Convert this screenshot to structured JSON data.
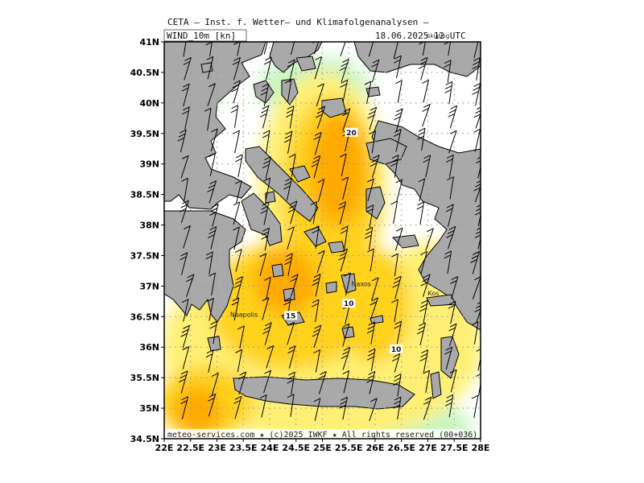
{
  "header": {
    "title": "CETA — Inst. f. Wetter— und Klimafolgenanalysen —",
    "variable": "WIND_10m [kn]",
    "datetime": "18.06.2025 12 UTC",
    "overlay_label": "Skiatlog"
  },
  "axes": {
    "lat_labels": [
      "41N",
      "40.5N",
      "40N",
      "39.5N",
      "39N",
      "38.5N",
      "38N",
      "37.5N",
      "37N",
      "36.5N",
      "36N",
      "35.5N",
      "35N",
      "34.5N"
    ],
    "lon_labels": [
      "22E",
      "22.5E",
      "23E",
      "23.5E",
      "24E",
      "24.5E",
      "25E",
      "25.5E",
      "26E",
      "26.5E",
      "27E",
      "27.5E",
      "28E"
    ]
  },
  "places": [
    {
      "name": "Naxos",
      "lon": 25.55,
      "lat": 37.0
    },
    {
      "name": "Kos",
      "lon": 27.0,
      "lat": 36.85
    },
    {
      "name": "Neapolis",
      "lon": 23.25,
      "lat": 36.5
    }
  ],
  "contour_labels": [
    {
      "text": "20",
      "lon": 25.55,
      "lat": 39.5
    },
    {
      "text": "15",
      "lon": 24.4,
      "lat": 36.5
    },
    {
      "text": "10",
      "lon": 25.5,
      "lat": 36.7
    },
    {
      "text": "10",
      "lon": 26.4,
      "lat": 35.95
    }
  ],
  "colors": {
    "land": "#a9a9a9",
    "calm": "#c8f5c3",
    "light": "#fff075",
    "moderate": "#ffd21e",
    "strong": "#ffaa00",
    "grid": "#9a9a9a"
  },
  "footer": "meteo-services.com ★ (c)2025 IWKF ★ All rights reserved (00+036)"
}
